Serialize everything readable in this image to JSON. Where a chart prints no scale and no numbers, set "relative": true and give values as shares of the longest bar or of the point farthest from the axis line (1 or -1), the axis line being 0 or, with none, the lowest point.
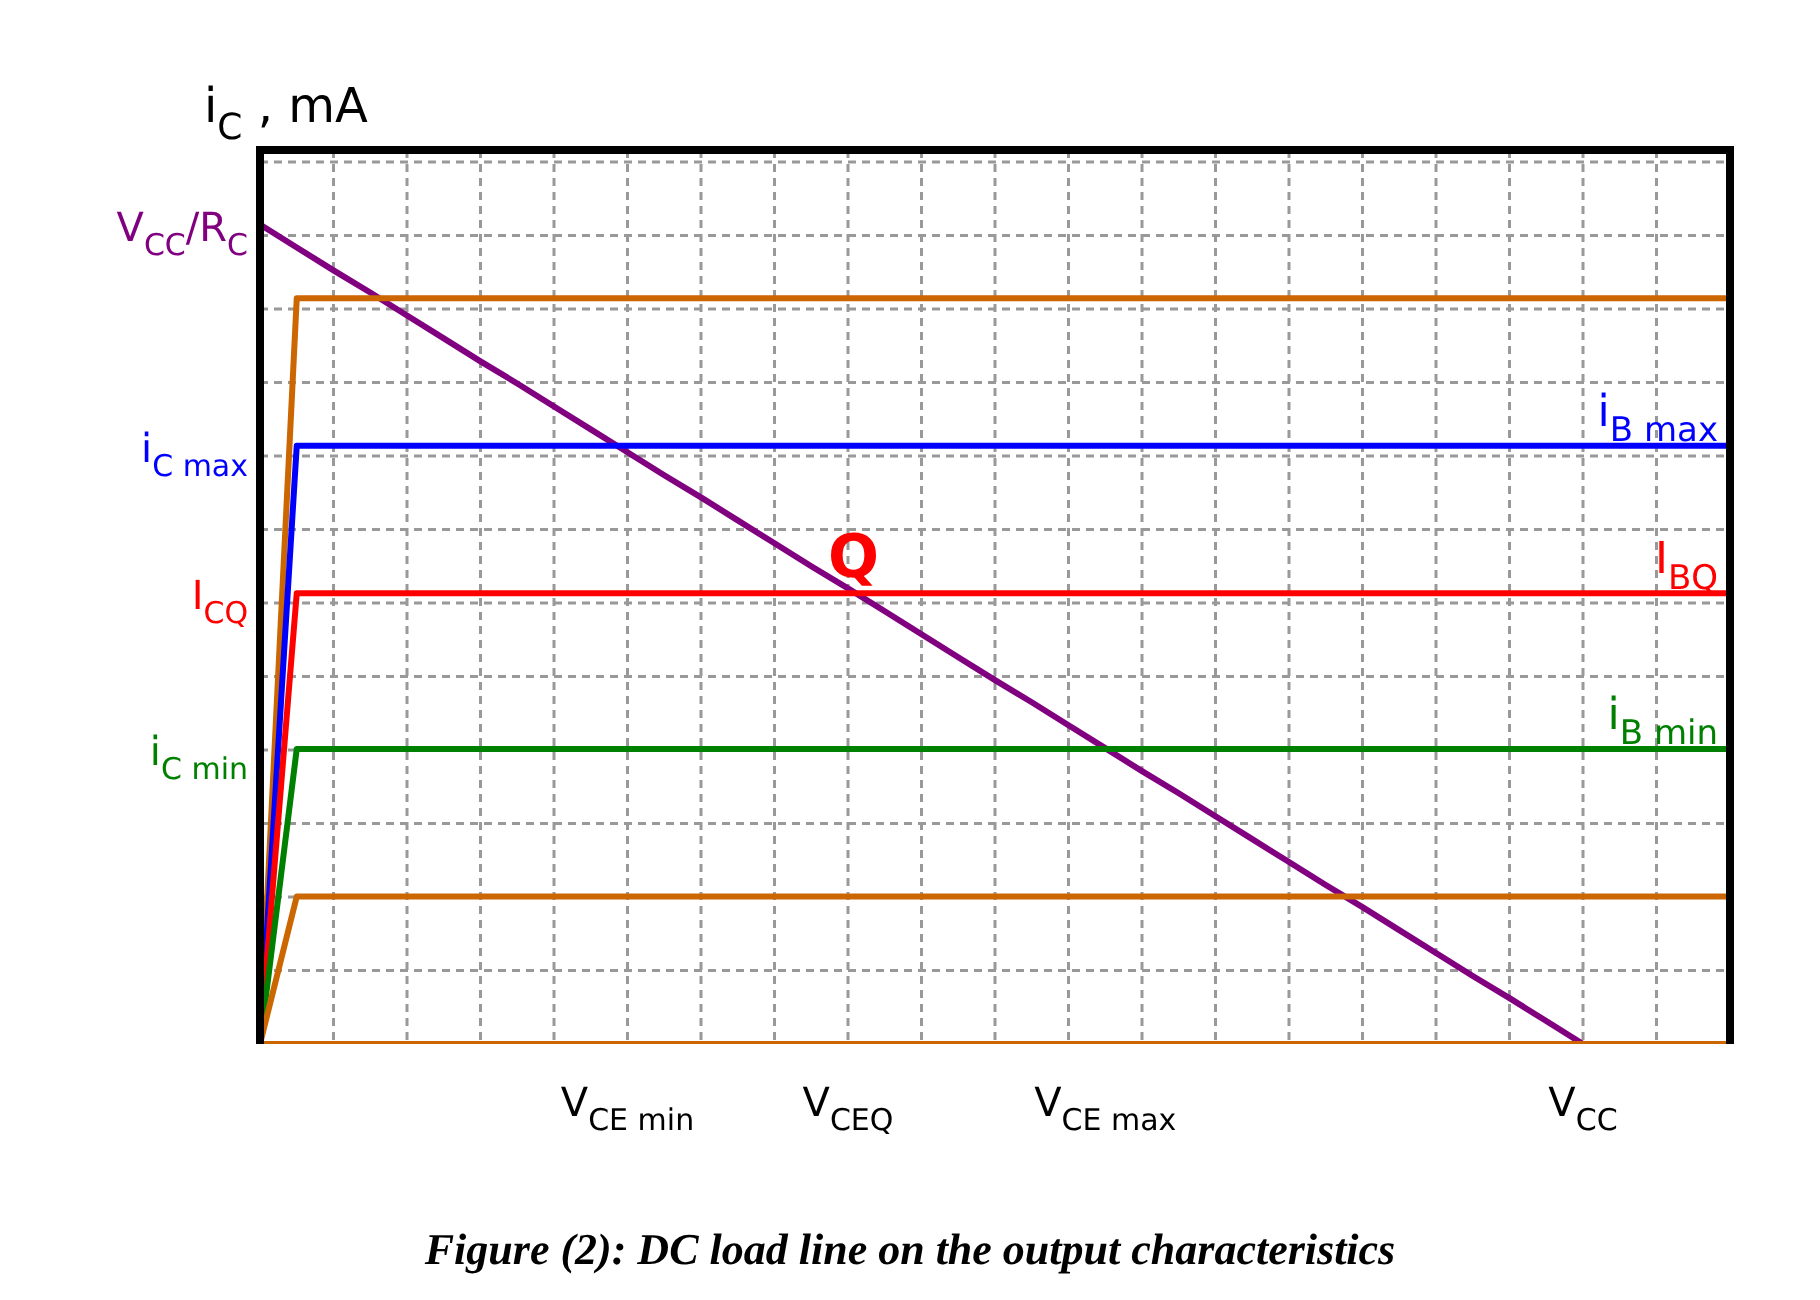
{
  "chart_data": {
    "type": "line",
    "relative": true,
    "ylabel": "i$_{C}$ , mA",
    "categories": [
      null,
      null,
      null,
      null,
      null,
      null,
      null,
      null,
      null,
      null,
      "V$_{CE min}$",
      null,
      null,
      null,
      null,
      null,
      "V$_{CEQ}$",
      null,
      null,
      null,
      null,
      null,
      null,
      "V$_{CE max}$",
      null,
      null,
      null,
      null,
      null,
      null,
      null,
      null,
      null,
      null,
      null,
      null,
      "V$_{CC}$",
      null,
      null,
      null,
      null
    ],
    "grid": true,
    "legend": false,
    "marker": "none",
    "line_style": "solid",
    "series": [
      {
        "color": "#cc6600",
        "values": [
          0,
          0,
          0,
          0,
          0,
          0,
          0,
          0,
          0,
          0,
          0,
          0,
          0,
          0,
          0,
          0,
          0,
          0,
          0,
          0,
          0,
          0,
          0,
          0,
          0,
          0,
          0,
          0,
          0,
          0,
          0,
          0,
          0,
          0,
          0,
          0,
          0,
          0,
          0,
          0,
          0
        ]
      },
      {
        "color": "#cc6600",
        "values": [
          0,
          0.18,
          0.18,
          0.18,
          0.18,
          0.18,
          0.18,
          0.18,
          0.18,
          0.18,
          0.18,
          0.18,
          0.18,
          0.18,
          0.18,
          0.18,
          0.18,
          0.18,
          0.18,
          0.18,
          0.18,
          0.18,
          0.18,
          0.18,
          0.18,
          0.18,
          0.18,
          0.18,
          0.18,
          0.18,
          0.18,
          0.18,
          0.18,
          0.18,
          0.18,
          0.18,
          0.18,
          0.18,
          0.18,
          0.18,
          0.18
        ]
      },
      {
        "color": "#008000",
        "name": "i$_{B min}$",
        "values": [
          0,
          0.36,
          0.36,
          0.36,
          0.36,
          0.36,
          0.36,
          0.36,
          0.36,
          0.36,
          0.36,
          0.36,
          0.36,
          0.36,
          0.36,
          0.36,
          0.36,
          0.36,
          0.36,
          0.36,
          0.36,
          0.36,
          0.36,
          0.36,
          0.36,
          0.36,
          0.36,
          0.36,
          0.36,
          0.36,
          0.36,
          0.36,
          0.36,
          0.36,
          0.36,
          0.36,
          0.36,
          0.36,
          0.36,
          0.36,
          0.36
        ]
      },
      {
        "color": "#ff0000",
        "name": "I$_{BQ}$",
        "values": [
          0,
          0.55,
          0.55,
          0.55,
          0.55,
          0.55,
          0.55,
          0.55,
          0.55,
          0.55,
          0.55,
          0.55,
          0.55,
          0.55,
          0.55,
          0.55,
          0.55,
          0.55,
          0.55,
          0.55,
          0.55,
          0.55,
          0.55,
          0.55,
          0.55,
          0.55,
          0.55,
          0.55,
          0.55,
          0.55,
          0.55,
          0.55,
          0.55,
          0.55,
          0.55,
          0.55,
          0.55,
          0.55,
          0.55,
          0.55,
          0.55
        ]
      },
      {
        "color": "#0000ff",
        "name": "i$_{B max}$",
        "values": [
          0,
          0.73,
          0.73,
          0.73,
          0.73,
          0.73,
          0.73,
          0.73,
          0.73,
          0.73,
          0.73,
          0.73,
          0.73,
          0.73,
          0.73,
          0.73,
          0.73,
          0.73,
          0.73,
          0.73,
          0.73,
          0.73,
          0.73,
          0.73,
          0.73,
          0.73,
          0.73,
          0.73,
          0.73,
          0.73,
          0.73,
          0.73,
          0.73,
          0.73,
          0.73,
          0.73,
          0.73,
          0.73,
          0.73,
          0.73,
          0.73
        ]
      },
      {
        "color": "#cc6600",
        "values": [
          0,
          0.91,
          0.91,
          0.91,
          0.91,
          0.91,
          0.91,
          0.91,
          0.91,
          0.91,
          0.91,
          0.91,
          0.91,
          0.91,
          0.91,
          0.91,
          0.91,
          0.91,
          0.91,
          0.91,
          0.91,
          0.91,
          0.91,
          0.91,
          0.91,
          0.91,
          0.91,
          0.91,
          0.91,
          0.91,
          0.91,
          0.91,
          0.91,
          0.91,
          0.91,
          0.91,
          0.91,
          0.91,
          0.91,
          0.91,
          0.91
        ]
      },
      {
        "color": "#800080",
        "values": [
          1,
          0.972,
          0.944,
          0.917,
          0.889,
          0.861,
          0.833,
          0.806,
          0.778,
          0.75,
          0.722,
          0.694,
          0.667,
          0.639,
          0.611,
          0.583,
          0.556,
          0.528,
          0.5,
          0.472,
          0.444,
          0.417,
          0.389,
          0.361,
          0.333,
          0.306,
          0.278,
          0.25,
          0.222,
          0.194,
          0.167,
          0.139,
          0.111,
          0.083,
          0.056,
          0.028,
          0,
          null,
          null,
          null,
          null
        ]
      }
    ],
    "annotations": [
      {
        "text": "Q",
        "x": "V$_{CEQ}$",
        "y": 0.55
      },
      "V$_{CC}$/R$_{C}$",
      "i$_{C max}$",
      "I$_{CQ}$",
      "i$_{C min}$",
      "Figure (2): DC load line on the output characteristics"
    ]
  }
}
